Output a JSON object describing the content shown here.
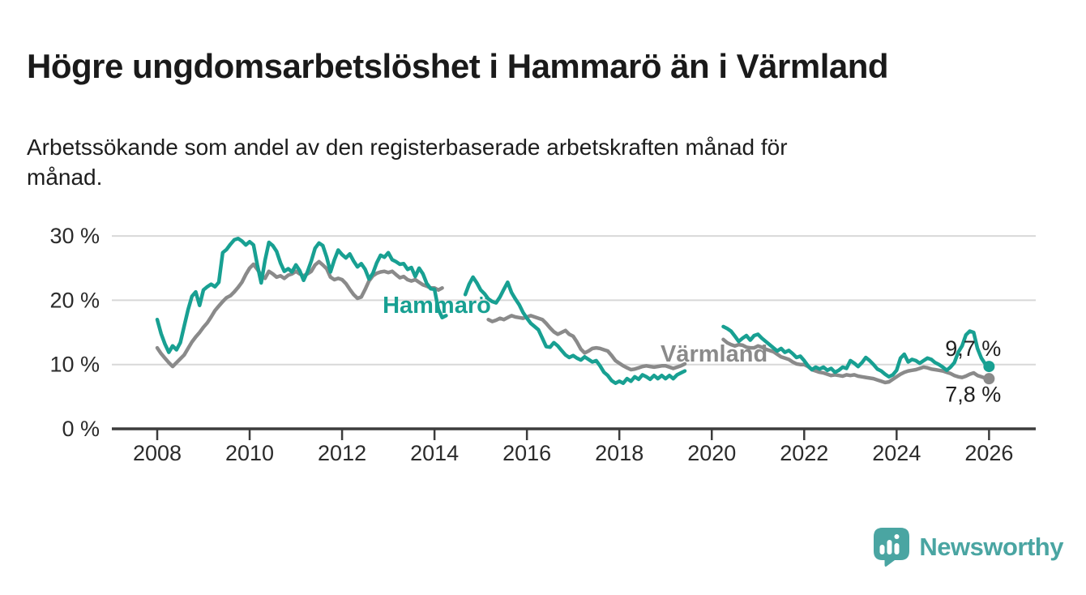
{
  "header": {
    "title": "Högre ungdomsarbetslöshet i Hammarö än i Värmland",
    "subtitle": "Arbetssökande som andel av den registerbaserade arbetskraften månad för månad.",
    "subtitle_lines": [
      "Arbetssökande som andel av den registerbaserade arbetskraften månad för",
      "månad."
    ]
  },
  "footer": {
    "brand": "Newsworthy"
  },
  "colors": {
    "hammaro": "#18A092",
    "varmland": "#8A8A8A",
    "grid": "#D8D8D8",
    "axis": "#3C3C3C",
    "text": "#1F1F1F",
    "brand_teal": "#4AA5A2"
  },
  "chart_data": {
    "type": "line",
    "title": "Högre ungdomsarbetslöshet i Hammarö än i Värmland",
    "subtitle": "Arbetssökande som andel av den registerbaserade arbetskraften månad för månad.",
    "unit": "%",
    "grid": true,
    "legend_position": "inline-labels",
    "x_start_year": 2008,
    "points_per_year": 12,
    "xlim": [
      2007.0,
      2027.0
    ],
    "ylim": [
      0,
      32
    ],
    "x_ticks": [
      {
        "year": 2008,
        "label": "2008"
      },
      {
        "year": 2010,
        "label": "2010"
      },
      {
        "year": 2012,
        "label": "2012"
      },
      {
        "year": 2014,
        "label": "2014"
      },
      {
        "year": 2016,
        "label": "2016"
      },
      {
        "year": 2018,
        "label": "2018"
      },
      {
        "year": 2020,
        "label": "2020"
      },
      {
        "year": 2022,
        "label": "2022"
      },
      {
        "year": 2024,
        "label": "2024"
      },
      {
        "year": 2026,
        "label": "2026"
      }
    ],
    "y_ticks": [
      {
        "value": 0,
        "label": "0 %"
      },
      {
        "value": 10,
        "label": "10 %"
      },
      {
        "value": 20,
        "label": "20 %"
      },
      {
        "value": 30,
        "label": "30 %"
      }
    ],
    "series": [
      {
        "name": "Värmland",
        "color_key": "varmland",
        "end_value_label": "7,8 %",
        "values": [
          12.6,
          11.7,
          11.0,
          10.3,
          9.7,
          10.3,
          10.9,
          11.5,
          12.5,
          13.5,
          14.3,
          15.0,
          15.8,
          16.5,
          17.4,
          18.4,
          19.1,
          19.8,
          20.4,
          20.7,
          21.3,
          22.0,
          22.8,
          24.0,
          25.0,
          25.6,
          24.8,
          23.9,
          23.4,
          24.5,
          24.1,
          23.6,
          23.8,
          23.4,
          23.9,
          24.1,
          24.5,
          24.1,
          23.8,
          24.1,
          24.5,
          25.5,
          26.0,
          25.5,
          24.9,
          23.6,
          23.2,
          23.4,
          23.2,
          22.6,
          21.7,
          20.9,
          20.3,
          20.5,
          21.7,
          23.0,
          23.8,
          24.2,
          24.4,
          24.5,
          24.3,
          24.5,
          24.0,
          23.5,
          23.7,
          23.2,
          23.0,
          23.2,
          22.8,
          22.4,
          22.2,
          21.9,
          21.9,
          21.6,
          21.9,
          null,
          null,
          null,
          null,
          null,
          null,
          null,
          null,
          null,
          null,
          null,
          17.0,
          16.7,
          16.9,
          17.2,
          17.0,
          17.3,
          17.6,
          17.4,
          17.3,
          17.2,
          17.4,
          17.6,
          17.4,
          17.2,
          17.0,
          16.4,
          15.7,
          15.1,
          14.7,
          15.0,
          15.3,
          14.7,
          14.4,
          13.5,
          12.4,
          11.8,
          12.1,
          12.5,
          12.6,
          12.5,
          12.3,
          12.1,
          11.4,
          10.6,
          10.2,
          9.8,
          9.5,
          9.2,
          9.3,
          9.5,
          9.7,
          9.8,
          9.7,
          9.6,
          9.7,
          9.8,
          9.8,
          9.6,
          9.4,
          9.6,
          9.8,
          10.1,
          null,
          null,
          null,
          null,
          null,
          null,
          null,
          null,
          null,
          13.9,
          13.4,
          13.1,
          12.9,
          13.1,
          13.0,
          12.7,
          12.6,
          12.6,
          12.9,
          12.7,
          12.4,
          12.2,
          12.0,
          11.6,
          11.2,
          11.0,
          10.8,
          10.4,
          10.1,
          10.0,
          10.0,
          9.7,
          9.2,
          9.0,
          8.8,
          8.7,
          8.5,
          8.3,
          8.4,
          8.3,
          8.2,
          8.4,
          8.3,
          8.4,
          8.2,
          8.1,
          8.0,
          7.9,
          7.8,
          7.6,
          7.4,
          7.2,
          7.3,
          7.7,
          8.1,
          8.5,
          8.8,
          9.0,
          9.1,
          9.2,
          9.4,
          9.6,
          9.5,
          9.3,
          9.2,
          9.1,
          9.0,
          8.8,
          8.6,
          8.3,
          8.1,
          8.0,
          8.2,
          8.5,
          8.7,
          8.3,
          8.1,
          7.9,
          7.8
        ]
      },
      {
        "name": "Hammarö",
        "color_key": "hammaro",
        "end_value_label": "9,7 %",
        "values": [
          17.0,
          14.8,
          13.2,
          11.9,
          12.9,
          12.3,
          13.4,
          16.0,
          18.5,
          20.6,
          21.3,
          19.2,
          21.6,
          22.1,
          22.5,
          22.1,
          22.8,
          27.4,
          27.9,
          28.7,
          29.4,
          29.6,
          29.2,
          28.6,
          29.1,
          28.6,
          25.5,
          22.7,
          26.2,
          29.0,
          28.5,
          27.6,
          25.8,
          24.5,
          24.9,
          24.4,
          25.5,
          24.6,
          23.1,
          24.4,
          26.1,
          28.1,
          28.9,
          28.5,
          26.7,
          24.4,
          26.3,
          27.8,
          27.1,
          26.6,
          27.2,
          26.1,
          25.2,
          25.7,
          24.8,
          23.3,
          24.2,
          25.8,
          27.0,
          26.7,
          27.4,
          26.3,
          26.0,
          25.6,
          25.7,
          24.8,
          25.1,
          23.7,
          25.0,
          24.1,
          22.6,
          21.8,
          21.7,
          18.6,
          17.3,
          17.6,
          null,
          null,
          null,
          null,
          20.9,
          22.5,
          23.6,
          22.7,
          21.6,
          21.0,
          20.2,
          19.8,
          19.6,
          20.5,
          21.7,
          22.8,
          21.2,
          20.2,
          19.3,
          18.1,
          17.2,
          16.4,
          15.9,
          15.4,
          14.1,
          12.8,
          12.7,
          13.4,
          12.9,
          12.2,
          11.5,
          11.1,
          11.4,
          11.0,
          10.7,
          11.2,
          10.8,
          10.4,
          10.6,
          9.8,
          8.8,
          8.3,
          7.5,
          7.1,
          7.4,
          7.1,
          7.8,
          7.4,
          8.1,
          7.7,
          8.4,
          8.1,
          7.7,
          8.3,
          7.8,
          8.3,
          7.8,
          8.3,
          7.8,
          8.4,
          8.7,
          9.0,
          null,
          null,
          null,
          null,
          null,
          null,
          null,
          null,
          null,
          15.9,
          15.6,
          15.2,
          14.4,
          13.6,
          14.1,
          14.5,
          13.8,
          14.5,
          14.7,
          14.1,
          13.6,
          13.1,
          12.6,
          12.1,
          12.5,
          11.9,
          12.2,
          11.7,
          11.1,
          11.3,
          10.6,
          9.8,
          9.2,
          9.6,
          9.3,
          9.6,
          9.1,
          9.4,
          8.8,
          9.1,
          9.6,
          9.4,
          10.6,
          10.2,
          9.7,
          10.3,
          11.1,
          10.6,
          10.0,
          9.3,
          9.0,
          8.5,
          8.1,
          8.4,
          9.1,
          11.0,
          11.6,
          10.4,
          10.8,
          10.6,
          10.2,
          10.6,
          11.0,
          10.8,
          10.3,
          10.0,
          9.6,
          9.1,
          9.6,
          10.3,
          11.9,
          12.9,
          14.6,
          15.2,
          15.0,
          12.5,
          11.0,
          10.1,
          9.7
        ]
      }
    ],
    "annotations": [
      {
        "text": "Hammarö",
        "color_key": "hammaro",
        "year": 2014.05,
        "value": 19.3,
        "bold": true,
        "size": 29,
        "anchor": "middle",
        "name": "series-label-hammaro"
      },
      {
        "text": "Värmland",
        "color_key": "varmland",
        "year": 2020.05,
        "value": 11.7,
        "bold": true,
        "size": 29,
        "anchor": "middle",
        "name": "series-label-varmland"
      },
      {
        "text": "9,7 %",
        "color_key": "text",
        "year": 2025.05,
        "value": 12.6,
        "bold": false,
        "size": 27,
        "anchor": "start",
        "name": "end-value-label-hammaro"
      },
      {
        "text": "7,8 %",
        "color_key": "text",
        "year": 2025.05,
        "value": 5.5,
        "bold": false,
        "size": 27,
        "anchor": "start",
        "name": "end-value-label-varmland"
      }
    ]
  }
}
